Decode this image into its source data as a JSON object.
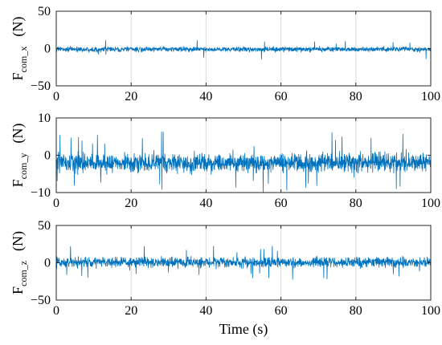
{
  "chart_data": [
    {
      "type": "line",
      "ylabel": {
        "main": "F",
        "sub": "com_x",
        "unit": "(N)"
      },
      "xlabel": "",
      "xlim": [
        0,
        100
      ],
      "ylim": [
        -50,
        50
      ],
      "xticks": [
        0,
        20,
        40,
        60,
        80,
        100
      ],
      "yticks": [
        50,
        0,
        -50
      ],
      "grid_x": true,
      "series": [
        {
          "color": "#0072BD",
          "noise": {
            "amplitude": 5.0,
            "center": -1.0,
            "spike_prob": 0.012,
            "spike_amp": 12
          }
        }
      ]
    },
    {
      "type": "line",
      "ylabel": {
        "main": "F",
        "sub": "com_y",
        "unit": "(N)"
      },
      "xlabel": "",
      "xlim": [
        0,
        100
      ],
      "ylim": [
        -10,
        10
      ],
      "xticks": [
        0,
        20,
        40,
        60,
        80,
        100
      ],
      "yticks": [
        10,
        0,
        -10
      ],
      "grid_x": true,
      "series": [
        {
          "color": "#0072BD",
          "noise": {
            "amplitude": 3.8,
            "center": -2.0,
            "spike_prob": 0.02,
            "spike_amp": 7.5
          }
        }
      ]
    },
    {
      "type": "line",
      "ylabel": {
        "main": "F",
        "sub": "com_z",
        "unit": "(N)"
      },
      "xlabel": "Time (s)",
      "xlim": [
        0,
        100
      ],
      "ylim": [
        -50,
        50
      ],
      "xticks": [
        0,
        20,
        40,
        60,
        80,
        100
      ],
      "yticks": [
        50,
        0,
        -50
      ],
      "grid_x": true,
      "series": [
        {
          "color": "#0072BD",
          "noise": {
            "amplitude": 10.0,
            "center": 0.5,
            "spike_prob": 0.015,
            "spike_amp": 22
          }
        }
      ]
    }
  ]
}
